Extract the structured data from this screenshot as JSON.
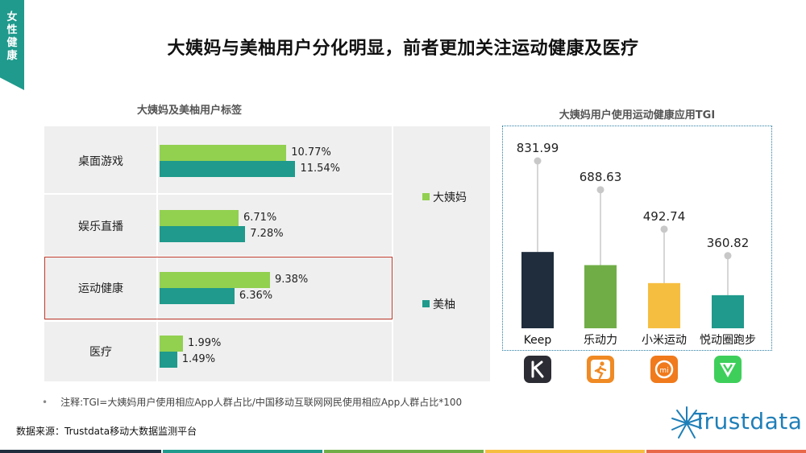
{
  "side_tab": "女性健康",
  "title": "大姨妈与美柚用户分化明显，前者更加关注运动健康及医疗",
  "note_bullet": "•",
  "note": "注释:TGI=大姨妈用户使用相应App人群占比/中国移动互联网网民使用相应App人群占比*100",
  "source": "数据来源：Trustdata移动大数据监测平台",
  "brand": "Trustdata",
  "colors": {
    "dayima": "#92d050",
    "meiyou": "#1f9a8c",
    "teal": "#1f9a8c",
    "highlight": "#c0392b"
  },
  "chart_data": [
    {
      "type": "bar",
      "orientation": "horizontal",
      "title": "大姨妈及美柚用户标签",
      "categories": [
        "桌面游戏",
        "娱乐直播",
        "运动健康",
        "医疗"
      ],
      "series": [
        {
          "name": "大姨妈",
          "values": [
            10.77,
            6.71,
            9.38,
            1.99
          ],
          "labels": [
            "10.77%",
            "6.71%",
            "9.38%",
            "1.99%"
          ],
          "color": "#92d050"
        },
        {
          "name": "美柚",
          "values": [
            11.54,
            7.28,
            6.36,
            1.49
          ],
          "labels": [
            "11.54%",
            "7.28%",
            "6.36%",
            "1.49%"
          ],
          "color": "#1f9a8c"
        }
      ],
      "unit": "%",
      "highlighted_category": "运动健康",
      "legend": [
        "大姨妈",
        "美柚"
      ]
    },
    {
      "type": "bar",
      "title": "大姨妈用户使用运动健康应用TGI",
      "categories": [
        "Keep",
        "乐动力",
        "小米运动",
        "悦动圈跑步"
      ],
      "values": [
        831.99,
        688.63,
        492.74,
        360.82
      ],
      "labels": [
        "831.99",
        "688.63",
        "492.74",
        "360.82"
      ],
      "colors": [
        "#1f2d3d",
        "#70ad47",
        "#f6be41",
        "#1f9a8c"
      ],
      "icons": [
        "keep-app-icon",
        "ledongli-app-icon",
        "mi-fit-app-icon",
        "yuedongquan-app-icon"
      ]
    }
  ]
}
